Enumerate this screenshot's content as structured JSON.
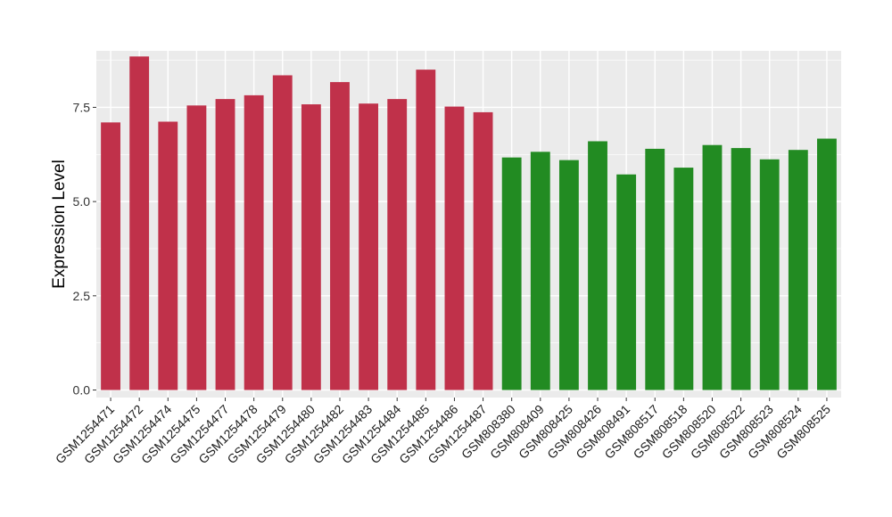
{
  "chart_data": {
    "type": "bar",
    "title": "",
    "xlabel": "",
    "ylabel": "Expression Level",
    "ylim": [
      -0.2,
      9.0
    ],
    "y_ticks": [
      0.0,
      2.5,
      5.0,
      7.5
    ],
    "y_tick_labels": [
      "0.0",
      "2.5",
      "5.0",
      "7.5"
    ],
    "grid": true,
    "legend": "none",
    "categories": [
      "GSM1254471",
      "GSM1254472",
      "GSM1254474",
      "GSM1254475",
      "GSM1254477",
      "GSM1254478",
      "GSM1254479",
      "GSM1254480",
      "GSM1254482",
      "GSM1254483",
      "GSM1254484",
      "GSM1254485",
      "GSM1254486",
      "GSM1254487",
      "GSM808380",
      "GSM808409",
      "GSM808425",
      "GSM808426",
      "GSM808491",
      "GSM808517",
      "GSM808518",
      "GSM808520",
      "GSM808522",
      "GSM808523",
      "GSM808524",
      "GSM808525"
    ],
    "values": [
      7.1,
      8.85,
      7.12,
      7.55,
      7.72,
      7.82,
      8.35,
      7.58,
      8.17,
      7.6,
      7.72,
      8.5,
      7.52,
      7.37,
      6.17,
      6.32,
      6.1,
      6.6,
      5.72,
      6.4,
      5.9,
      6.5,
      6.42,
      6.12,
      6.37,
      6.67
    ],
    "bar_colors": [
      "#C0314A",
      "#C0314A",
      "#C0314A",
      "#C0314A",
      "#C0314A",
      "#C0314A",
      "#C0314A",
      "#C0314A",
      "#C0314A",
      "#C0314A",
      "#C0314A",
      "#C0314A",
      "#C0314A",
      "#C0314A",
      "#228B22",
      "#228B22",
      "#228B22",
      "#228B22",
      "#228B22",
      "#228B22",
      "#228B22",
      "#228B22",
      "#228B22",
      "#228B22",
      "#228B22",
      "#228B22"
    ],
    "panel_background": "#EBEBEB",
    "grid_color": "#FFFFFF"
  }
}
